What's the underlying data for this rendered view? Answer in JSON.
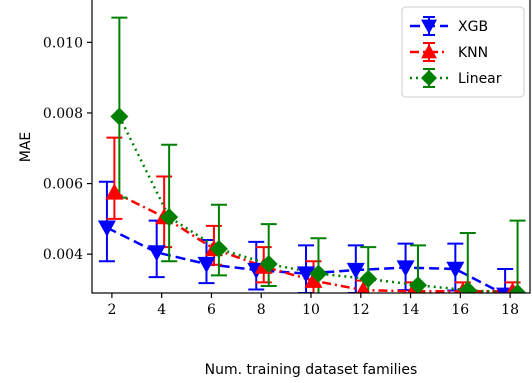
{
  "chart_data": {
    "type": "line",
    "xlabel": "Num. training dataset families",
    "ylabel": "MAE",
    "xlim": [
      1.2,
      18.8
    ],
    "ylim": [
      0.0029,
      0.0112
    ],
    "xticks": [
      2,
      4,
      6,
      8,
      10,
      12,
      14,
      16,
      18
    ],
    "yticks": [
      0.004,
      0.006,
      0.008,
      0.01
    ],
    "ytick_labels": [
      "0.004",
      "0.006",
      "0.008",
      "0.010"
    ],
    "grid": false,
    "legend_position": "top-right",
    "series": [
      {
        "name": "XGB",
        "color": "#0000ff",
        "marker": "triangle-down",
        "linestyle": "dashed",
        "x": [
          1.8,
          3.8,
          5.8,
          7.8,
          9.8,
          11.8,
          13.8,
          15.8,
          17.8
        ],
        "y": [
          0.00475,
          0.00405,
          0.00372,
          0.00355,
          0.00345,
          0.00355,
          0.00362,
          0.00358,
          0.00285
        ],
        "err_low": [
          0.0038,
          0.00335,
          0.00318,
          0.003,
          0.0029,
          0.0029,
          0.00298,
          0.00297,
          0.00265
        ],
        "err_high": [
          0.00605,
          0.00495,
          0.0044,
          0.00435,
          0.00425,
          0.00425,
          0.0043,
          0.0043,
          0.00358
        ]
      },
      {
        "name": "KNN",
        "color": "#ff0000",
        "marker": "triangle-up",
        "linestyle": "dashdot",
        "x": [
          2.1,
          4.1,
          6.1,
          8.1,
          10.1,
          12.1,
          14.1,
          16.1,
          18.1
        ],
        "y": [
          0.00575,
          0.00505,
          0.00415,
          0.00365,
          0.00325,
          0.00298,
          0.00295,
          0.00295,
          0.00295
        ],
        "err_low": [
          0.005,
          0.0042,
          0.0037,
          0.0032,
          0.00288,
          0.0028,
          0.0028,
          0.0028,
          0.0028
        ],
        "err_high": [
          0.0073,
          0.0062,
          0.0048,
          0.0042,
          0.0038,
          0.00325,
          0.0032,
          0.0032,
          0.0032
        ]
      },
      {
        "name": "Linear",
        "color": "#008000",
        "marker": "diamond",
        "linestyle": "dotted",
        "x": [
          2.3,
          4.3,
          6.3,
          8.3,
          10.3,
          12.3,
          14.3,
          16.3,
          18.3
        ],
        "y": [
          0.0079,
          0.00505,
          0.00415,
          0.00372,
          0.00345,
          0.0033,
          0.00312,
          0.00298,
          0.0029
        ],
        "err_low": [
          0.0056,
          0.0038,
          0.0034,
          0.0031,
          0.0028,
          0.0027,
          0.00265,
          0.0025,
          0.0025
        ],
        "err_high": [
          0.0107,
          0.0071,
          0.0054,
          0.00485,
          0.00445,
          0.0042,
          0.00425,
          0.0046,
          0.00495
        ]
      }
    ]
  }
}
